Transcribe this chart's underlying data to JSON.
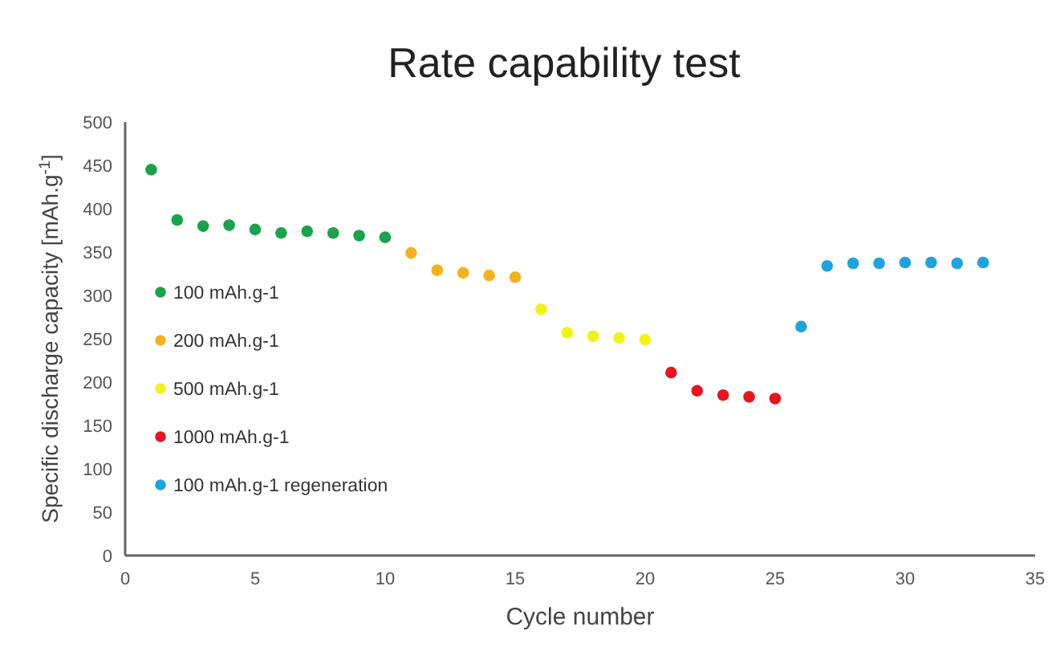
{
  "chart_data": {
    "type": "scatter",
    "title": "Rate capability test",
    "xlabel": "Cycle number",
    "ylabel": "Specific discharge capacity [mAh.g$^{-1}$]",
    "xlim": [
      0,
      35
    ],
    "xticks": [
      0,
      5,
      10,
      15,
      20,
      25,
      30,
      35
    ],
    "ylim": [
      0,
      500
    ],
    "yticks": [
      0,
      50,
      100,
      150,
      200,
      250,
      300,
      350,
      400,
      450,
      500
    ],
    "grid": false,
    "legend": "left",
    "marker": "circle",
    "series": [
      {
        "name": "100 mAh.g-1",
        "color": "#1aa34a",
        "x": [
          1,
          2,
          3,
          4,
          5,
          6,
          7,
          8,
          9,
          10
        ],
        "values": [
          445,
          387,
          380,
          381,
          376,
          372,
          374,
          372,
          369,
          367
        ]
      },
      {
        "name": "200 mAh.g-1",
        "color": "#f5b21a",
        "x": [
          11,
          12,
          13,
          14,
          15
        ],
        "values": [
          349,
          329,
          326,
          323,
          321
        ]
      },
      {
        "name": "500 mAh.g-1",
        "color": "#f2f21a",
        "x": [
          16,
          17,
          18,
          19,
          20
        ],
        "values": [
          284,
          257,
          253,
          251,
          249
        ]
      },
      {
        "name": "1000 mAh.g-1",
        "color": "#e8141e",
        "x": [
          21,
          22,
          23,
          24,
          25
        ],
        "values": [
          211,
          190,
          185,
          183,
          181
        ]
      },
      {
        "name": "100 mAh.g-1 regeneration",
        "color": "#1fa3dc",
        "x": [
          26,
          27,
          28,
          29,
          30,
          31,
          32,
          33
        ],
        "values": [
          264,
          334,
          337,
          337,
          338,
          338,
          337,
          338
        ]
      }
    ]
  }
}
